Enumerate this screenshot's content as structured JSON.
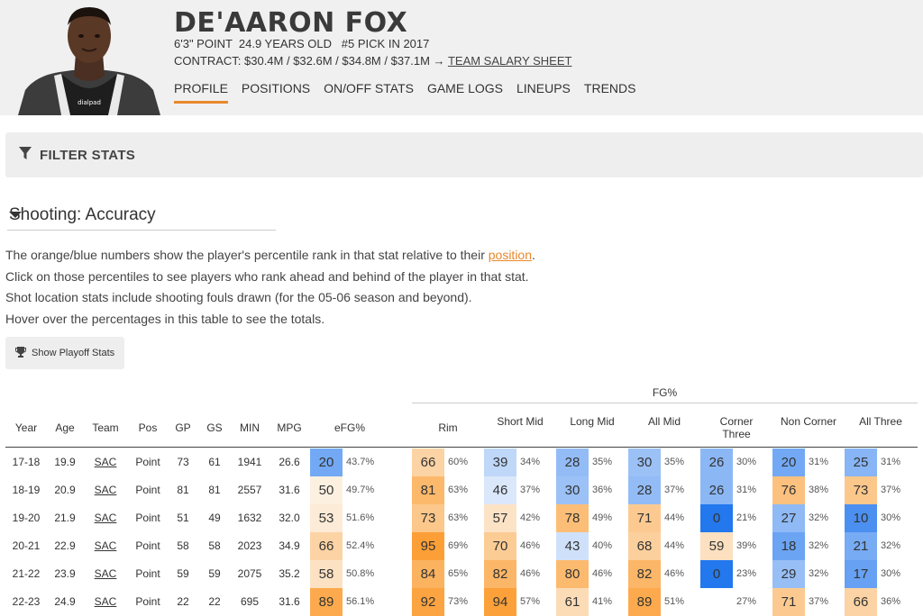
{
  "player": {
    "name": "DE'AARON FOX",
    "meta_line": "6'3\" POINT  24.9 YEARS OLD   #5 PICK IN 2017",
    "contract_prefix": "CONTRACT: $30.4M / $32.6M / $34.8M / $37.1M → ",
    "contract_link": "TEAM SALARY SHEET"
  },
  "nav": [
    "PROFILE",
    "POSITIONS",
    "ON/OFF STATS",
    "GAME LOGS",
    "LINEUPS",
    "TRENDS"
  ],
  "filter": {
    "label": "FILTER STATS"
  },
  "dropdown": {
    "value": "Shooting: Accuracy"
  },
  "info": {
    "line1_prefix": "The orange/blue numbers show the player's percentile rank in that stat relative to their ",
    "line1_link": "position",
    "line1_suffix": ".",
    "line2": "Click on those percentiles to see players who rank ahead and behind of the player in that stat.",
    "line3": "Shot location stats include shooting fouls drawn (for the 05-06 season and beyond).",
    "line4": "Hover over the percentages in this table to see the totals."
  },
  "playoff_button": "Show Playoff Stats",
  "table": {
    "group_header": "FG%",
    "columns": [
      "Year",
      "Age",
      "Team",
      "Pos",
      "GP",
      "GS",
      "MIN",
      "MPG",
      "eFG%",
      "Rim",
      "Short Mid",
      "Long Mid",
      "All Mid",
      "Corner Three",
      "Non Corner",
      "All Three"
    ],
    "rows": [
      {
        "year": "17-18",
        "age": "19.9",
        "team": "SAC",
        "pos": "Point",
        "gp": "73",
        "gs": "61",
        "min": "1941",
        "mpg": "26.6",
        "stats": [
          [
            "20",
            "43.7%"
          ],
          [
            "66",
            "60%"
          ],
          [
            "39",
            "34%"
          ],
          [
            "28",
            "35%"
          ],
          [
            "30",
            "35%"
          ],
          [
            "26",
            "30%"
          ],
          [
            "20",
            "31%"
          ],
          [
            "25",
            "31%"
          ]
        ]
      },
      {
        "year": "18-19",
        "age": "20.9",
        "team": "SAC",
        "pos": "Point",
        "gp": "81",
        "gs": "81",
        "min": "2557",
        "mpg": "31.6",
        "stats": [
          [
            "50",
            "49.7%"
          ],
          [
            "81",
            "63%"
          ],
          [
            "46",
            "37%"
          ],
          [
            "30",
            "36%"
          ],
          [
            "28",
            "37%"
          ],
          [
            "26",
            "31%"
          ],
          [
            "76",
            "38%"
          ],
          [
            "73",
            "37%"
          ]
        ]
      },
      {
        "year": "19-20",
        "age": "21.9",
        "team": "SAC",
        "pos": "Point",
        "gp": "51",
        "gs": "49",
        "min": "1632",
        "mpg": "32.0",
        "stats": [
          [
            "53",
            "51.6%"
          ],
          [
            "73",
            "63%"
          ],
          [
            "57",
            "42%"
          ],
          [
            "78",
            "49%"
          ],
          [
            "71",
            "44%"
          ],
          [
            "0",
            "21%"
          ],
          [
            "27",
            "32%"
          ],
          [
            "10",
            "30%"
          ]
        ]
      },
      {
        "year": "20-21",
        "age": "22.9",
        "team": "SAC",
        "pos": "Point",
        "gp": "58",
        "gs": "58",
        "min": "2023",
        "mpg": "34.9",
        "stats": [
          [
            "66",
            "52.4%"
          ],
          [
            "95",
            "69%"
          ],
          [
            "70",
            "46%"
          ],
          [
            "43",
            "40%"
          ],
          [
            "68",
            "44%"
          ],
          [
            "59",
            "39%"
          ],
          [
            "18",
            "32%"
          ],
          [
            "21",
            "32%"
          ]
        ]
      },
      {
        "year": "21-22",
        "age": "23.9",
        "team": "SAC",
        "pos": "Point",
        "gp": "59",
        "gs": "59",
        "min": "2075",
        "mpg": "35.2",
        "stats": [
          [
            "58",
            "50.8%"
          ],
          [
            "84",
            "65%"
          ],
          [
            "82",
            "46%"
          ],
          [
            "80",
            "46%"
          ],
          [
            "82",
            "46%"
          ],
          [
            "0",
            "23%"
          ],
          [
            "29",
            "32%"
          ],
          [
            "17",
            "30%"
          ]
        ]
      },
      {
        "year": "22-23",
        "age": "24.9",
        "team": "SAC",
        "pos": "Point",
        "gp": "22",
        "gs": "22",
        "min": "695",
        "mpg": "31.6",
        "stats": [
          [
            "89",
            "56.1%"
          ],
          [
            "92",
            "73%"
          ],
          [
            "94",
            "57%"
          ],
          [
            "61",
            "41%"
          ],
          [
            "89",
            "51%"
          ],
          [
            "",
            "27%"
          ],
          [
            "71",
            "37%"
          ],
          [
            "66",
            "36%"
          ]
        ]
      }
    ]
  }
}
